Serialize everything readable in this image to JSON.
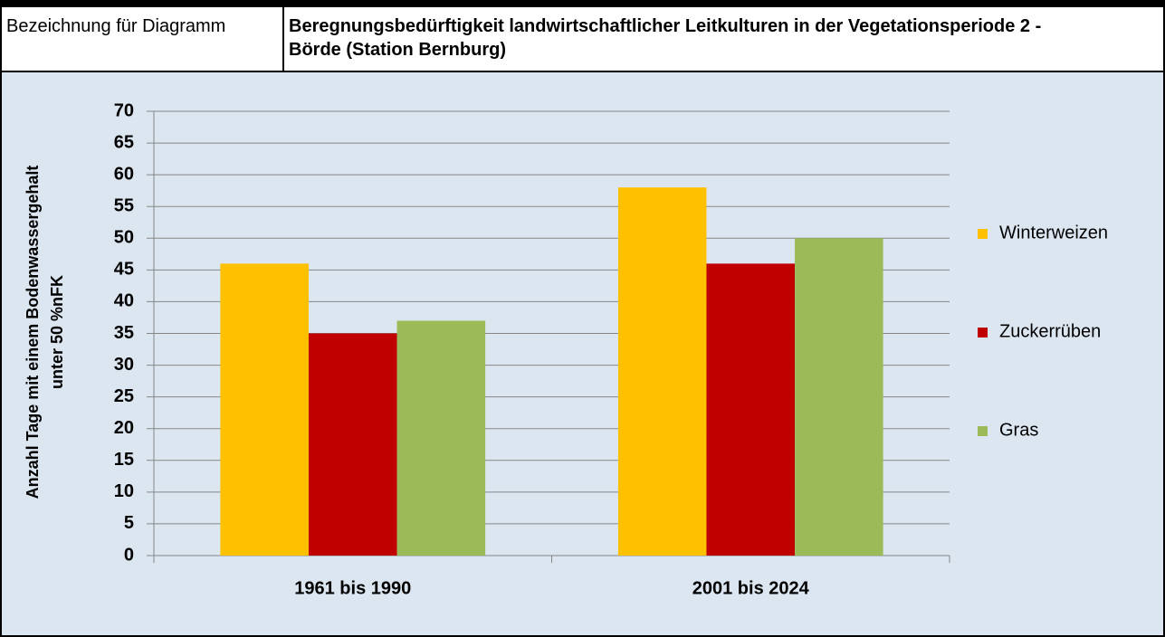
{
  "header_label": "Bezeichnung für Diagramm",
  "chart_data": {
    "type": "bar",
    "title": "Beregnungsbedürftigkeit landwirtschaftlicher Leitkulturen in der Vegetationsperiode 2 - Börde (Station Bernburg)",
    "ylabel": "Anzahl Tage mit einem Bodenwassergehalt unter 50 %nFK",
    "categories": [
      "1961 bis 1990",
      "2001 bis 2024"
    ],
    "series": [
      {
        "name": "Winterweizen",
        "color": "#ffc000",
        "values": [
          46,
          58
        ]
      },
      {
        "name": "Zuckerrüben",
        "color": "#c00000",
        "values": [
          35,
          46
        ]
      },
      {
        "name": "Gras",
        "color": "#9bbb59",
        "values": [
          37,
          50
        ]
      }
    ],
    "ylim": [
      0,
      70
    ],
    "yticks": [
      0,
      5,
      10,
      15,
      20,
      25,
      30,
      35,
      40,
      45,
      50,
      55,
      60,
      65,
      70
    ],
    "grid": true,
    "legend": "right"
  }
}
